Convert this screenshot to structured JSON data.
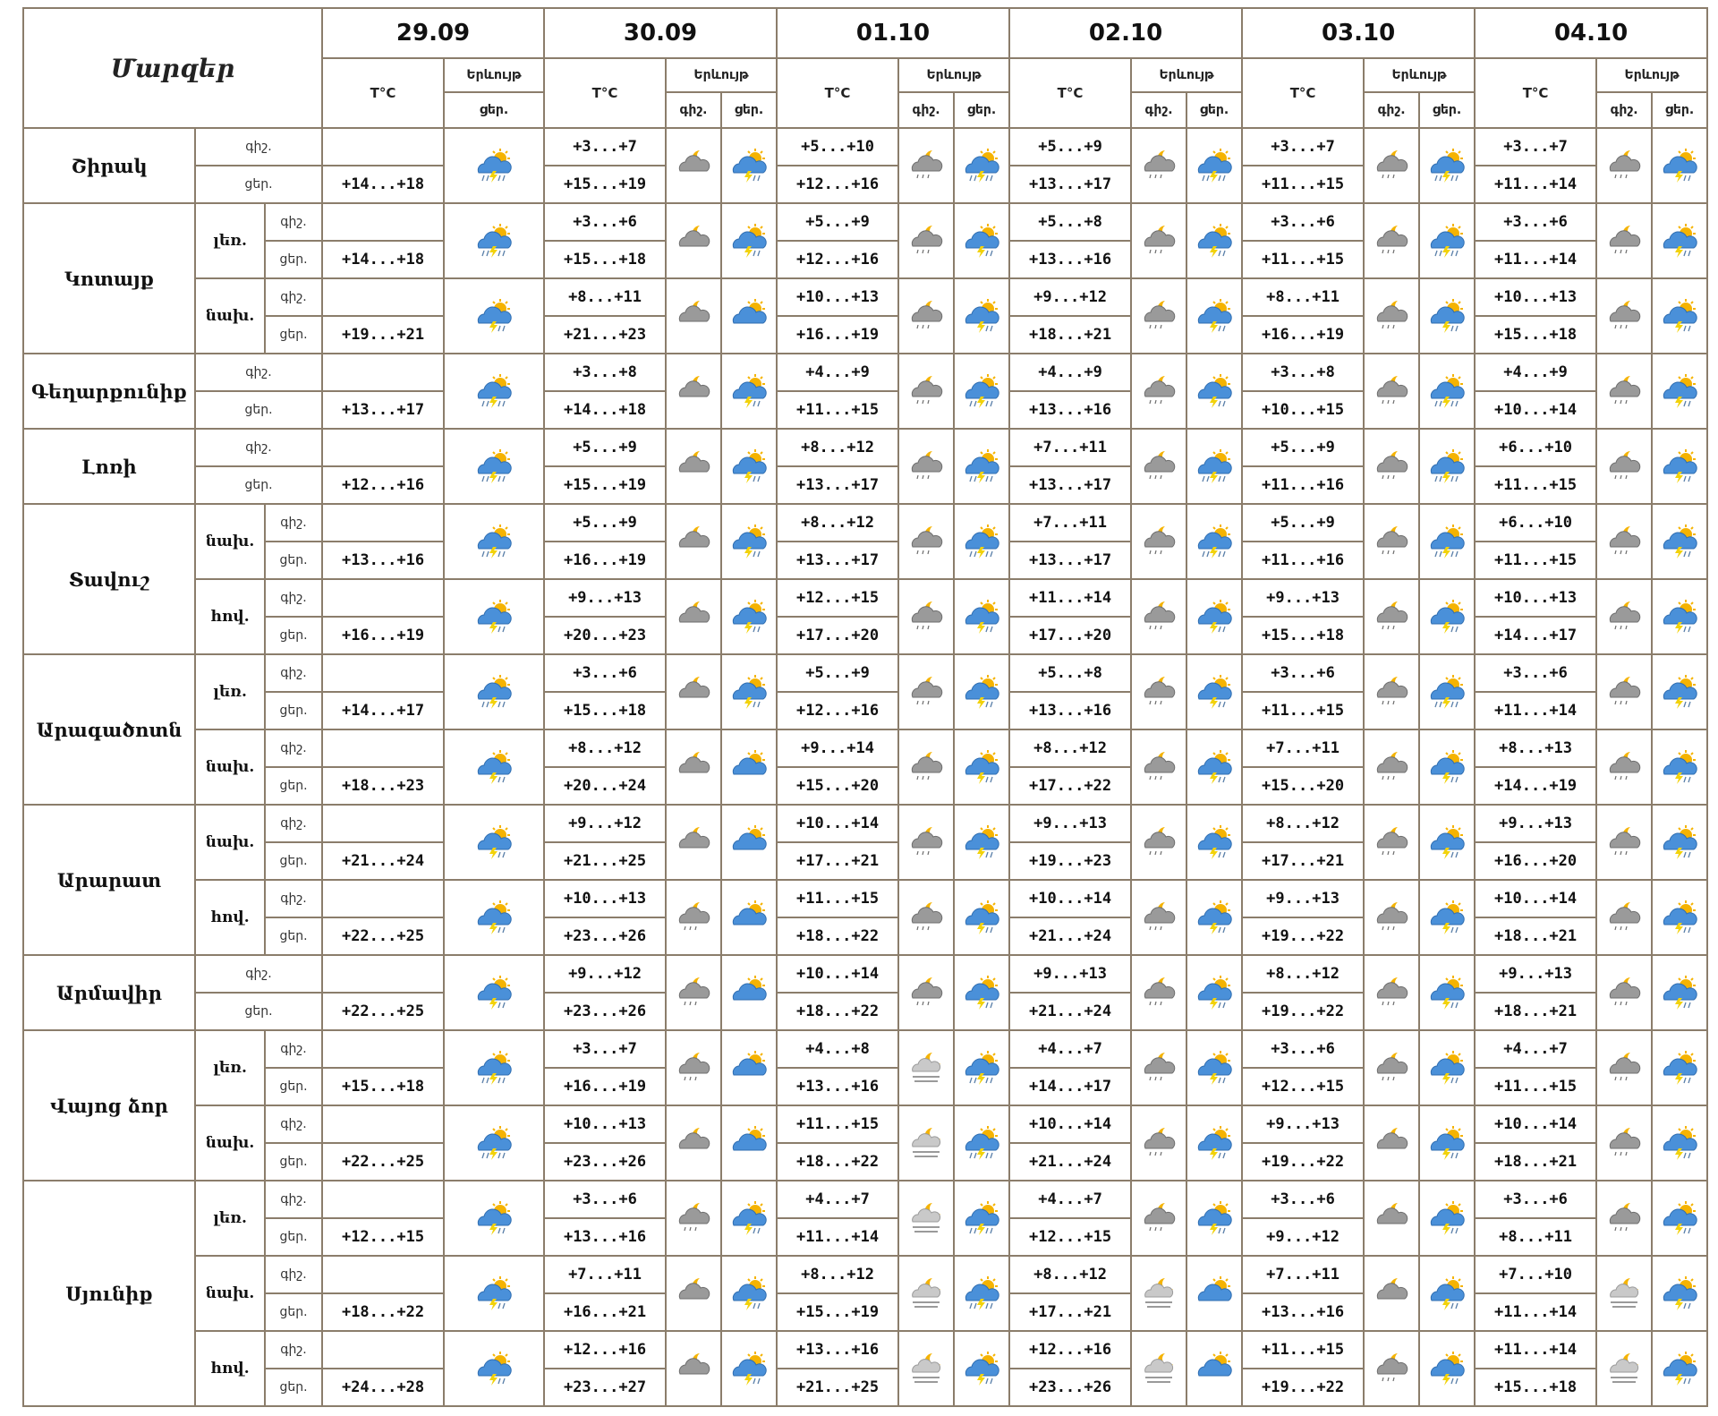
{
  "header": {
    "title": "Մարզեր",
    "dates": [
      "29.09",
      "30.09",
      "01.10",
      "02.10",
      "03.10",
      "04.10"
    ],
    "temp_label": "T°C",
    "weather_label": "Երևույթ",
    "night_label": "գիշ.",
    "day_label": "ցեր."
  },
  "regions": [
    {
      "name": "Շիրակ",
      "subs": [
        {
          "name": "",
          "night": [
            "",
            "+3...+7",
            "+5...+10",
            "+5...+9",
            "+3...+7",
            "+3...+7"
          ],
          "day": [
            "+14...+18",
            "+15...+19",
            "+12...+16",
            "+13...+17",
            "+11...+15",
            "+11...+14"
          ],
          "nicons": [
            "cloud-moon-icon",
            "rain-moon-icon",
            "rain-moon-icon",
            "rain-moon-icon",
            "rain-moon-icon"
          ],
          "dicons": [
            "storm-rain-icon",
            "storm-sun-icon",
            "storm-rain-icon",
            "storm-rain-icon",
            "storm-rain-icon",
            "storm-sun-icon"
          ]
        }
      ]
    },
    {
      "name": "Կոտայք",
      "subs": [
        {
          "name": "լեռ.",
          "night": [
            "",
            "+3...+6",
            "+5...+9",
            "+5...+8",
            "+3...+6",
            "+3...+6"
          ],
          "day": [
            "+14...+18",
            "+15...+18",
            "+12...+16",
            "+13...+16",
            "+11...+15",
            "+11...+14"
          ],
          "nicons": [
            "cloud-moon-icon",
            "rain-moon-icon",
            "rain-moon-icon",
            "rain-moon-icon",
            "rain-moon-icon"
          ],
          "dicons": [
            "storm-rain-icon",
            "storm-sun-icon",
            "storm-sun-icon",
            "storm-sun-icon",
            "storm-rain-icon",
            "storm-sun-icon"
          ]
        },
        {
          "name": "նախ.",
          "night": [
            "",
            "+8...+11",
            "+10...+13",
            "+9...+12",
            "+8...+11",
            "+10...+13"
          ],
          "day": [
            "+19...+21",
            "+21...+23",
            "+16...+19",
            "+18...+21",
            "+16...+19",
            "+15...+18"
          ],
          "nicons": [
            "cloud-moon-icon",
            "rain-moon-icon",
            "rain-moon-icon",
            "rain-moon-icon",
            "rain-moon-icon"
          ],
          "dicons": [
            "storm-sun-icon",
            "cloud-sun-icon",
            "storm-sun-icon",
            "storm-sun-icon",
            "storm-sun-icon",
            "storm-sun-icon"
          ]
        }
      ]
    },
    {
      "name": "Գեղարքունիք",
      "subs": [
        {
          "name": "",
          "night": [
            "",
            "+3...+8",
            "+4...+9",
            "+4...+9",
            "+3...+8",
            "+4...+9"
          ],
          "day": [
            "+13...+17",
            "+14...+18",
            "+11...+15",
            "+13...+16",
            "+10...+15",
            "+10...+14"
          ],
          "nicons": [
            "cloud-moon-icon",
            "rain-moon-icon",
            "rain-moon-icon",
            "rain-moon-icon",
            "rain-moon-icon"
          ],
          "dicons": [
            "storm-rain-icon",
            "storm-sun-icon",
            "storm-rain-icon",
            "storm-sun-icon",
            "storm-rain-icon",
            "storm-sun-icon"
          ]
        }
      ]
    },
    {
      "name": "Լոռի",
      "subs": [
        {
          "name": "",
          "night": [
            "",
            "+5...+9",
            "+8...+12",
            "+7...+11",
            "+5...+9",
            "+6...+10"
          ],
          "day": [
            "+12...+16",
            "+15...+19",
            "+13...+17",
            "+13...+17",
            "+11...+16",
            "+11...+15"
          ],
          "nicons": [
            "cloud-moon-icon",
            "rain-moon-icon",
            "rain-moon-icon",
            "rain-moon-icon",
            "rain-moon-icon"
          ],
          "dicons": [
            "storm-rain-icon",
            "storm-sun-icon",
            "storm-rain-icon",
            "storm-rain-icon",
            "storm-rain-icon",
            "storm-sun-icon"
          ]
        }
      ]
    },
    {
      "name": "Տավուշ",
      "subs": [
        {
          "name": "նախ.",
          "night": [
            "",
            "+5...+9",
            "+8...+12",
            "+7...+11",
            "+5...+9",
            "+6...+10"
          ],
          "day": [
            "+13...+16",
            "+16...+19",
            "+13...+17",
            "+13...+17",
            "+11...+16",
            "+11...+15"
          ],
          "nicons": [
            "cloud-moon-icon",
            "rain-moon-icon",
            "rain-moon-icon",
            "rain-moon-icon",
            "rain-moon-icon"
          ],
          "dicons": [
            "storm-rain-icon",
            "storm-sun-icon",
            "storm-rain-icon",
            "storm-rain-icon",
            "storm-rain-icon",
            "storm-sun-icon"
          ]
        },
        {
          "name": "հով.",
          "night": [
            "",
            "+9...+13",
            "+12...+15",
            "+11...+14",
            "+9...+13",
            "+10...+13"
          ],
          "day": [
            "+16...+19",
            "+20...+23",
            "+17...+20",
            "+17...+20",
            "+15...+18",
            "+14...+17"
          ],
          "nicons": [
            "cloud-moon-icon",
            "rain-moon-icon",
            "rain-moon-icon",
            "rain-moon-icon",
            "rain-moon-icon"
          ],
          "dicons": [
            "storm-sun-icon",
            "storm-sun-icon",
            "storm-sun-icon",
            "storm-sun-icon",
            "storm-sun-icon",
            "storm-sun-icon"
          ]
        }
      ]
    },
    {
      "name": "Արագածոտն",
      "subs": [
        {
          "name": "լեռ.",
          "night": [
            "",
            "+3...+6",
            "+5...+9",
            "+5...+8",
            "+3...+6",
            "+3...+6"
          ],
          "day": [
            "+14...+17",
            "+15...+18",
            "+12...+16",
            "+13...+16",
            "+11...+15",
            "+11...+14"
          ],
          "nicons": [
            "cloud-moon-icon",
            "rain-moon-icon",
            "rain-moon-icon",
            "rain-moon-icon",
            "rain-moon-icon"
          ],
          "dicons": [
            "storm-rain-icon",
            "storm-sun-icon",
            "storm-sun-icon",
            "storm-sun-icon",
            "storm-rain-icon",
            "storm-sun-icon"
          ]
        },
        {
          "name": "նախ.",
          "night": [
            "",
            "+8...+12",
            "+9...+14",
            "+8...+12",
            "+7...+11",
            "+8...+13"
          ],
          "day": [
            "+18...+23",
            "+20...+24",
            "+15...+20",
            "+17...+22",
            "+15...+20",
            "+14...+19"
          ],
          "nicons": [
            "cloud-moon-icon",
            "rain-moon-icon",
            "rain-moon-icon",
            "rain-moon-icon",
            "rain-moon-icon"
          ],
          "dicons": [
            "storm-sun-icon",
            "cloud-sun-icon",
            "storm-sun-icon",
            "storm-sun-icon",
            "storm-sun-icon",
            "storm-sun-icon"
          ]
        }
      ]
    },
    {
      "name": "Արարատ",
      "subs": [
        {
          "name": "նախ.",
          "night": [
            "",
            "+9...+12",
            "+10...+14",
            "+9...+13",
            "+8...+12",
            "+9...+13"
          ],
          "day": [
            "+21...+24",
            "+21...+25",
            "+17...+21",
            "+19...+23",
            "+17...+21",
            "+16...+20"
          ],
          "nicons": [
            "cloud-moon-icon",
            "rain-moon-icon",
            "rain-moon-icon",
            "rain-moon-icon",
            "rain-moon-icon"
          ],
          "dicons": [
            "storm-sun-icon",
            "cloud-sun-icon",
            "storm-sun-icon",
            "storm-sun-icon",
            "storm-sun-icon",
            "storm-sun-icon"
          ]
        },
        {
          "name": "հով.",
          "night": [
            "",
            "+10...+13",
            "+11...+15",
            "+10...+14",
            "+9...+13",
            "+10...+14"
          ],
          "day": [
            "+22...+25",
            "+23...+26",
            "+18...+22",
            "+21...+24",
            "+19...+22",
            "+18...+21"
          ],
          "nicons": [
            "rain-moon-icon",
            "rain-moon-icon",
            "rain-moon-icon",
            "rain-moon-icon",
            "rain-moon-icon"
          ],
          "dicons": [
            "storm-sun-icon",
            "cloud-sun-icon",
            "storm-sun-icon",
            "storm-sun-icon",
            "storm-sun-icon",
            "storm-sun-icon"
          ]
        }
      ]
    },
    {
      "name": "Արմավիր",
      "subs": [
        {
          "name": "",
          "night": [
            "",
            "+9...+12",
            "+10...+14",
            "+9...+13",
            "+8...+12",
            "+9...+13"
          ],
          "day": [
            "+22...+25",
            "+23...+26",
            "+18...+22",
            "+21...+24",
            "+19...+22",
            "+18...+21"
          ],
          "nicons": [
            "rain-moon-icon",
            "rain-moon-icon",
            "rain-moon-icon",
            "rain-moon-icon",
            "rain-moon-icon"
          ],
          "dicons": [
            "storm-sun-icon",
            "cloud-sun-icon",
            "storm-sun-icon",
            "storm-sun-icon",
            "storm-sun-icon",
            "storm-sun-icon"
          ]
        }
      ]
    },
    {
      "name": "Վայոց ձոր",
      "subs": [
        {
          "name": "լեռ.",
          "night": [
            "",
            "+3...+7",
            "+4...+8",
            "+4...+7",
            "+3...+6",
            "+4...+7"
          ],
          "day": [
            "+15...+18",
            "+16...+19",
            "+13...+16",
            "+14...+17",
            "+12...+15",
            "+11...+15"
          ],
          "nicons": [
            "rain-moon-icon",
            "fog-moon-icon",
            "rain-moon-icon",
            "rain-moon-icon",
            "rain-moon-icon"
          ],
          "dicons": [
            "storm-rain-icon",
            "cloud-sun-icon",
            "storm-rain-icon",
            "storm-sun-icon",
            "storm-sun-icon",
            "storm-sun-icon"
          ]
        },
        {
          "name": "նախ.",
          "night": [
            "",
            "+10...+13",
            "+11...+15",
            "+10...+14",
            "+9...+13",
            "+10...+14"
          ],
          "day": [
            "+22...+25",
            "+23...+26",
            "+18...+22",
            "+21...+24",
            "+19...+22",
            "+18...+21"
          ],
          "nicons": [
            "cloud-moon-icon",
            "fog-moon-icon",
            "rain-moon-icon",
            "cloud-moon-icon",
            "rain-moon-icon"
          ],
          "dicons": [
            "storm-rain-icon",
            "cloud-sun-icon",
            "storm-rain-icon",
            "storm-sun-icon",
            "storm-sun-icon",
            "storm-sun-icon"
          ]
        }
      ]
    },
    {
      "name": "Սյունիք",
      "subs": [
        {
          "name": "լեռ.",
          "night": [
            "",
            "+3...+6",
            "+4...+7",
            "+4...+7",
            "+3...+6",
            "+3...+6"
          ],
          "day": [
            "+12...+15",
            "+13...+16",
            "+11...+14",
            "+12...+15",
            "+9...+12",
            "+8...+11"
          ],
          "nicons": [
            "rain-moon-icon",
            "fog-moon-icon",
            "rain-moon-icon",
            "cloud-moon-icon",
            "rain-moon-icon"
          ],
          "dicons": [
            "storm-sun-icon",
            "storm-sun-icon",
            "storm-rain-icon",
            "storm-sun-icon",
            "storm-sun-icon",
            "storm-sun-icon"
          ]
        },
        {
          "name": "նախ.",
          "night": [
            "",
            "+7...+11",
            "+8...+12",
            "+8...+12",
            "+7...+11",
            "+7...+10"
          ],
          "day": [
            "+18...+22",
            "+16...+21",
            "+15...+19",
            "+17...+21",
            "+13...+16",
            "+11...+14"
          ],
          "nicons": [
            "cloud-moon-icon",
            "fog-moon-icon",
            "fog-moon-icon",
            "cloud-moon-icon",
            "fog-moon-icon"
          ],
          "dicons": [
            "storm-sun-icon",
            "storm-sun-icon",
            "storm-rain-icon",
            "cloud-sun-icon",
            "storm-sun-icon",
            "storm-sun-icon"
          ]
        },
        {
          "name": "հով.",
          "night": [
            "",
            "+12...+16",
            "+13...+16",
            "+12...+16",
            "+11...+15",
            "+11...+14"
          ],
          "day": [
            "+24...+28",
            "+23...+27",
            "+21...+25",
            "+23...+26",
            "+19...+22",
            "+15...+18"
          ],
          "nicons": [
            "cloud-moon-icon",
            "fog-moon-icon",
            "fog-moon-icon",
            "rain-moon-icon",
            "fog-moon-icon"
          ],
          "dicons": [
            "storm-sun-icon",
            "storm-sun-icon",
            "storm-sun-icon",
            "cloud-sun-icon",
            "storm-sun-icon",
            "storm-sun-icon"
          ]
        }
      ]
    }
  ],
  "colors": {
    "border": "#8b7d6b",
    "cloud_gray": "#9a9a9a",
    "cloud_blue": "#4a90d9",
    "sun": "#f5b301",
    "lightning": "#f2d20a"
  }
}
